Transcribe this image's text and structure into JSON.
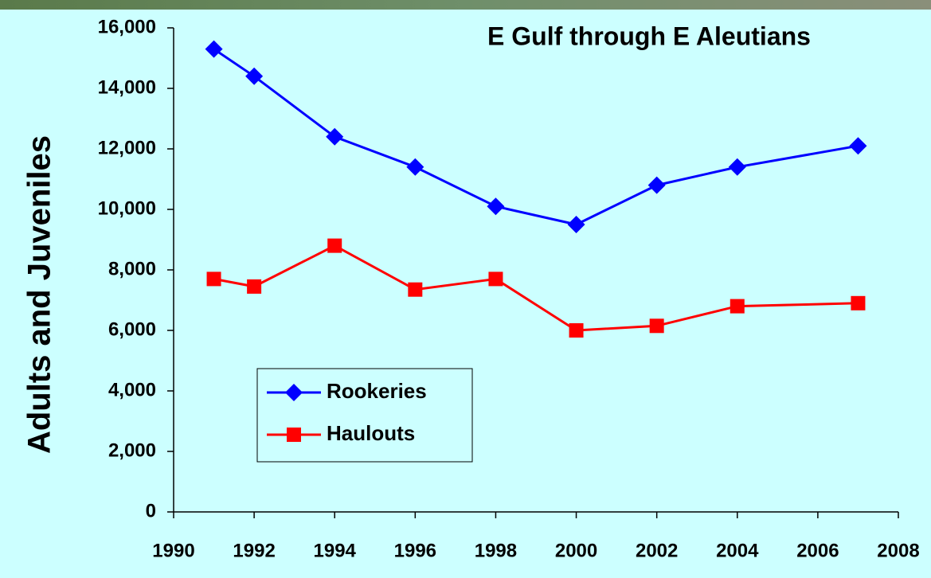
{
  "chart_data": {
    "type": "line",
    "title": "E Gulf through E Aleutians",
    "y_label": "Adults and Juveniles",
    "x": [
      1991,
      1992,
      1994,
      1996,
      1998,
      2000,
      2002,
      2004,
      2007
    ],
    "series": [
      {
        "name": "Rookeries",
        "color": "#0000ff",
        "marker": "diamond",
        "values": [
          15300,
          14400,
          12400,
          11400,
          10100,
          9500,
          10800,
          11400,
          12100
        ]
      },
      {
        "name": "Haulouts",
        "color": "#ff0000",
        "marker": "square",
        "values": [
          7700,
          7450,
          8800,
          7350,
          7700,
          6000,
          6150,
          6800,
          6900
        ]
      }
    ],
    "xlim": [
      1990,
      2008
    ],
    "xticks": [
      1990,
      1992,
      1994,
      1996,
      1998,
      2000,
      2002,
      2004,
      2006,
      2008
    ],
    "ylim": [
      0,
      16000
    ],
    "yticks": [
      0,
      {
        "value": 2000,
        "label": "2,000"
      },
      {
        "value": 4000,
        "label": "4,000"
      },
      {
        "value": 6000,
        "label": "6,000"
      },
      {
        "value": 8000,
        "label": "8,000"
      },
      {
        "value": 10000,
        "label": "10,000"
      },
      {
        "value": 12000,
        "label": "12,000"
      },
      {
        "value": 14000,
        "label": "14,000"
      },
      {
        "value": 16000,
        "label": "16,000"
      }
    ],
    "grid": false,
    "legend": "lower-left"
  }
}
